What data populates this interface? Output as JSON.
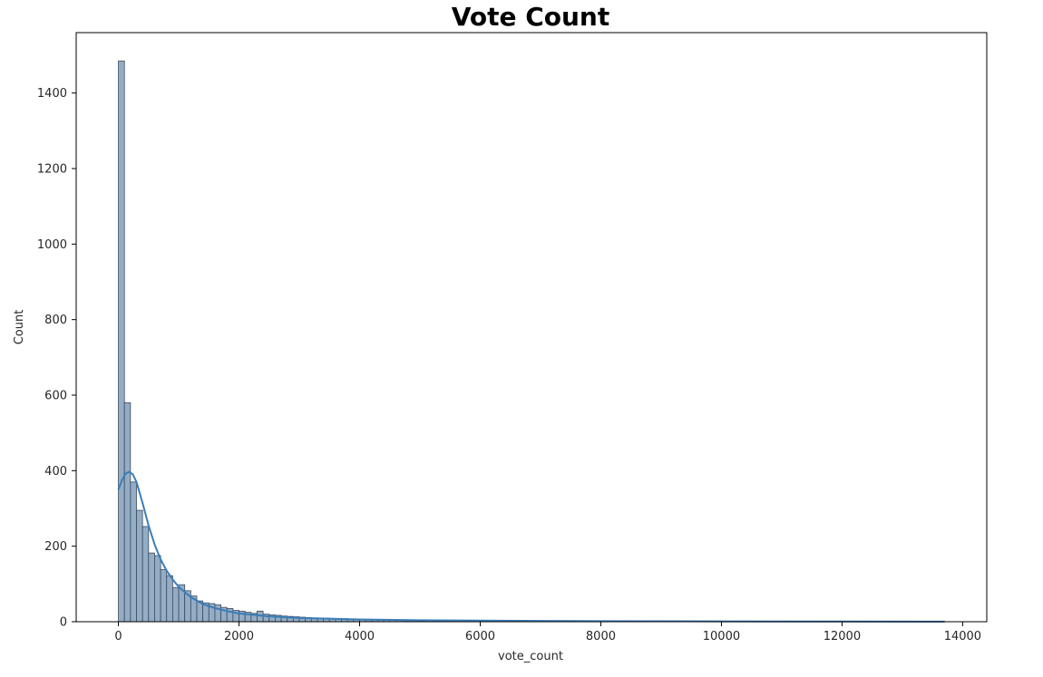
{
  "chart_data": {
    "type": "bar",
    "title": "Vote Count",
    "xlabel": "vote_count",
    "ylabel": "Count",
    "xlim": [
      -700,
      14400
    ],
    "ylim": [
      0,
      1560
    ],
    "xticks": [
      0,
      2000,
      4000,
      6000,
      8000,
      10000,
      12000,
      14000
    ],
    "yticks": [
      0,
      200,
      400,
      600,
      800,
      1000,
      1200,
      1400
    ],
    "grid": false,
    "bin_width": 100,
    "bins": [
      [
        0,
        1485
      ],
      [
        100,
        580
      ],
      [
        200,
        370
      ],
      [
        300,
        295
      ],
      [
        400,
        252
      ],
      [
        500,
        182
      ],
      [
        600,
        175
      ],
      [
        700,
        138
      ],
      [
        800,
        122
      ],
      [
        900,
        90
      ],
      [
        1000,
        98
      ],
      [
        1100,
        82
      ],
      [
        1200,
        68
      ],
      [
        1300,
        55
      ],
      [
        1400,
        50
      ],
      [
        1500,
        48
      ],
      [
        1600,
        45
      ],
      [
        1700,
        38
      ],
      [
        1800,
        35
      ],
      [
        1900,
        30
      ],
      [
        2000,
        28
      ],
      [
        2100,
        25
      ],
      [
        2200,
        22
      ],
      [
        2300,
        28
      ],
      [
        2400,
        20
      ],
      [
        2500,
        18
      ],
      [
        2600,
        17
      ],
      [
        2700,
        15
      ],
      [
        2800,
        14
      ],
      [
        2900,
        13
      ],
      [
        3000,
        12
      ],
      [
        3100,
        11
      ],
      [
        3200,
        10
      ],
      [
        3300,
        9
      ],
      [
        3400,
        9
      ],
      [
        3500,
        8
      ],
      [
        3600,
        7
      ],
      [
        3700,
        8
      ],
      [
        3800,
        7
      ],
      [
        3900,
        6
      ],
      [
        4000,
        6
      ],
      [
        4100,
        5
      ],
      [
        4200,
        5
      ],
      [
        4300,
        6
      ],
      [
        4400,
        5
      ],
      [
        4500,
        6
      ],
      [
        4600,
        4
      ],
      [
        4700,
        3
      ],
      [
        4800,
        3
      ],
      [
        4900,
        3
      ],
      [
        5000,
        2
      ],
      [
        5200,
        2
      ],
      [
        5400,
        2
      ],
      [
        5800,
        2
      ],
      [
        6000,
        3
      ],
      [
        6200,
        1
      ],
      [
        6500,
        2
      ],
      [
        7000,
        1
      ],
      [
        7500,
        1
      ],
      [
        8000,
        1
      ],
      [
        8500,
        1
      ],
      [
        9000,
        1
      ],
      [
        10000,
        1
      ],
      [
        11000,
        1
      ],
      [
        12000,
        1
      ],
      [
        13600,
        1
      ]
    ],
    "kde": {
      "x": [
        0,
        60,
        120,
        180,
        240,
        300,
        400,
        500,
        600,
        700,
        800,
        900,
        1000,
        1200,
        1400,
        1600,
        1800,
        2000,
        2500,
        3000,
        3500,
        4000,
        5000,
        6000,
        7000,
        8000,
        10000,
        12000,
        13700
      ],
      "y": [
        350,
        375,
        392,
        397,
        390,
        370,
        315,
        255,
        205,
        165,
        135,
        112,
        92,
        65,
        47,
        36,
        28,
        22,
        14,
        10,
        8,
        6,
        4,
        3,
        2,
        1.5,
        1,
        0.5,
        0.2
      ]
    },
    "colors": {
      "bar_fill": "#94adc6",
      "bar_edge": "#3c4a5c",
      "kde_line": "#3a7db8"
    }
  }
}
